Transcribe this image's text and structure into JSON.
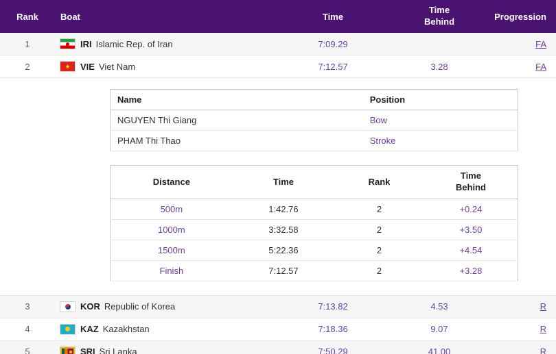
{
  "colors": {
    "header_bg": "#4a1271",
    "accent": "#6b3fa5"
  },
  "header": {
    "columns": [
      "Rank",
      "Boat",
      "Time",
      "Time Behind",
      "Progression"
    ]
  },
  "results": [
    {
      "rank": "1",
      "flag": "iri",
      "noc": "IRI",
      "boat": "Islamic Rep. of Iran",
      "time": "7:09.29",
      "behind": "",
      "progression": "FA"
    },
    {
      "rank": "2",
      "flag": "vie",
      "noc": "VIE",
      "boat": "Viet Nam",
      "time": "7:12.57",
      "behind": "3.28",
      "progression": "FA"
    },
    {
      "rank": "3",
      "flag": "kor",
      "noc": "KOR",
      "boat": "Republic of Korea",
      "time": "7:13.82",
      "behind": "4.53",
      "progression": "R"
    },
    {
      "rank": "4",
      "flag": "kaz",
      "noc": "KAZ",
      "boat": "Kazakhstan",
      "time": "7:18.36",
      "behind": "9.07",
      "progression": "R"
    },
    {
      "rank": "5",
      "flag": "sri",
      "noc": "SRI",
      "boat": "Sri Lanka",
      "time": "7:50.29",
      "behind": "41.00",
      "progression": "R"
    }
  ],
  "crew_table": {
    "headers": {
      "name": "Name",
      "position": "Position"
    },
    "rows": [
      {
        "name": "NGUYEN Thi Giang",
        "position": "Bow"
      },
      {
        "name": "PHAM Thi Thao",
        "position": "Stroke"
      }
    ]
  },
  "splits_table": {
    "headers": {
      "distance": "Distance",
      "time": "Time",
      "rank": "Rank",
      "behind": "Time Behind"
    },
    "rows": [
      {
        "distance": "500m",
        "time": "1:42.76",
        "rank": "2",
        "behind": "+0.24"
      },
      {
        "distance": "1000m",
        "time": "3:32.58",
        "rank": "2",
        "behind": "+3.50"
      },
      {
        "distance": "1500m",
        "time": "5:22.36",
        "rank": "2",
        "behind": "+4.54"
      },
      {
        "distance": "Finish",
        "time": "7:12.57",
        "rank": "2",
        "behind": "+3.28"
      }
    ]
  }
}
